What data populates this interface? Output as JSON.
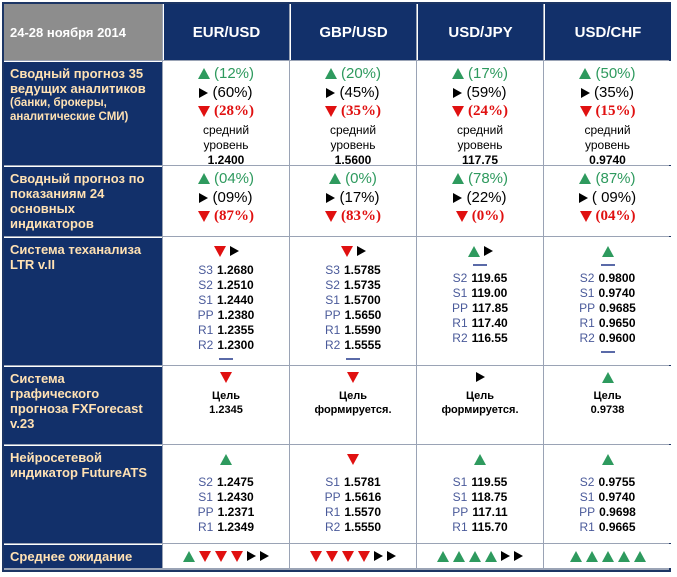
{
  "header": {
    "period": "24-28 ноября 2014",
    "pairs": [
      "EUR/USD",
      "GBP/USD",
      "USD/JPY",
      "USD/CHF"
    ]
  },
  "rows": [
    {
      "label": "Сводный прогноз 35 ведущих аналитиков",
      "sublabel": "(банки, брокеры, аналитические СМИ)",
      "cells": [
        {
          "up": "(12%)",
          "flat": "(60%)",
          "down": "(28%)",
          "caption": "средний уровень",
          "level": "1.2400"
        },
        {
          "up": "(20%)",
          "flat": "(45%)",
          "down": "(35%)",
          "caption": "средний уровень",
          "level": "1.5600"
        },
        {
          "up": "(17%)",
          "flat": "(59%)",
          "down": "(24%)",
          "caption": "средний уровень",
          "level": "117.75"
        },
        {
          "up": "(50%)",
          "flat": "(35%)",
          "down": "(15%)",
          "caption": "средний уровень",
          "level": "0.9740"
        }
      ]
    },
    {
      "label": "Сводный прогноз по показаниям 24 основных индикаторов",
      "cells": [
        {
          "up": "(04%)",
          "flat": "(09%)",
          "down": "(87%)"
        },
        {
          "up": "(0%)",
          "flat": "(17%)",
          "down": "(83%)"
        },
        {
          "up": "(78%)",
          "flat": "(22%)",
          "down": "(0%)"
        },
        {
          "up": "(87%)",
          "flat": "( 09%)",
          "down": "(04%)"
        }
      ]
    },
    {
      "label": "Система теханализа LTR v.II",
      "cells": [
        {
          "levels": [
            [
              "S3",
              "1.2680"
            ],
            [
              "S2",
              "1.2510"
            ],
            [
              "S1",
              "1.2440"
            ],
            [
              "PP",
              "1.2380"
            ],
            [
              "R1",
              "1.2355"
            ],
            [
              "R2",
              "1.2300"
            ]
          ]
        },
        {
          "levels": [
            [
              "S3",
              "1.5785"
            ],
            [
              "S2",
              "1.5735"
            ],
            [
              "S1",
              "1.5700"
            ],
            [
              "PP",
              "1.5650"
            ],
            [
              "R1",
              "1.5590"
            ],
            [
              "R2",
              "1.5555"
            ]
          ]
        },
        {
          "levels": [
            [
              "S2",
              "119.65"
            ],
            [
              "S1",
              "119.00"
            ],
            [
              "PP",
              "117.85"
            ],
            [
              "R1",
              "117.40"
            ],
            [
              "R2",
              "116.55"
            ]
          ]
        },
        {
          "levels": [
            [
              "S2",
              "0.9800"
            ],
            [
              "S1",
              "0.9740"
            ],
            [
              "PP",
              "0.9685"
            ],
            [
              "R1",
              "0.9650"
            ],
            [
              "R2",
              "0.9600"
            ]
          ]
        }
      ]
    },
    {
      "label": "Система графического прогноза FXForecast v.23",
      "cells": [
        {
          "caption": "Цель",
          "target": "1.2345"
        },
        {
          "caption": "Цель",
          "target": "формируется."
        },
        {
          "caption": "Цель",
          "target": "формируется."
        },
        {
          "caption": "Цель",
          "target": "0.9738"
        }
      ]
    },
    {
      "label": "Нейросетевой индикатор FutureATS",
      "cells": [
        {
          "levels": [
            [
              "S2",
              "1.2475"
            ],
            [
              "S1",
              "1.2430"
            ],
            [
              "PP",
              "1.2371"
            ],
            [
              "R1",
              "1.2349"
            ]
          ]
        },
        {
          "levels": [
            [
              "S1",
              "1.5781"
            ],
            [
              "PP",
              "1.5616"
            ],
            [
              "R1",
              "1.5570"
            ],
            [
              "R2",
              "1.5550"
            ]
          ]
        },
        {
          "levels": [
            [
              "S1",
              "119.55"
            ],
            [
              "S1",
              "118.75"
            ],
            [
              "PP",
              "117.11"
            ],
            [
              "R1",
              "115.70"
            ]
          ]
        },
        {
          "levels": [
            [
              "S2",
              "0.9755"
            ],
            [
              "S1",
              "0.9740"
            ],
            [
              "PP",
              "0.9698"
            ],
            [
              "R1",
              "0.9665"
            ]
          ]
        }
      ]
    },
    {
      "label": "Среднее ожидание"
    }
  ]
}
